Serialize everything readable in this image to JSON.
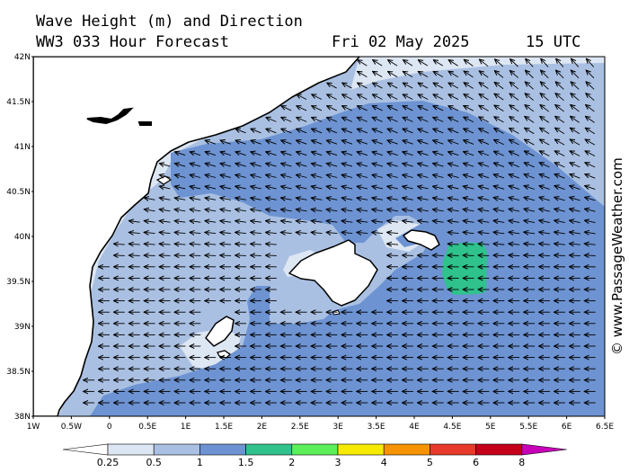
{
  "header": {
    "title_line1": "Wave Height (m) and Direction",
    "title_line2": "WW3 033 Hour Forecast",
    "date": "Fri 02 May 2025",
    "time": "15 UTC"
  },
  "credit": "© www.PassageWeather.com",
  "map": {
    "lat_labels": [
      "42N",
      "41.5N",
      "41N",
      "40.5N",
      "40N",
      "39.5N",
      "39N",
      "38.5N",
      "38N"
    ],
    "lon_labels": [
      "1W",
      "0.5W",
      "0",
      "0.5E",
      "1E",
      "1.5E",
      "2E",
      "2.5E",
      "3E",
      "3.5E",
      "4E",
      "4.5E",
      "5E",
      "5.5E",
      "6E",
      "6.5E"
    ],
    "lat_range": [
      38,
      42
    ],
    "lon_range": [
      -1,
      6.5
    ],
    "wave_direction": "from east-southeast, arrows pointing west / north-west"
  },
  "legend": {
    "labels": [
      "0.25",
      "0.5",
      "1",
      "1.5",
      "2",
      "3",
      "4",
      "5",
      "6",
      "8"
    ],
    "colors": [
      "#ffffff",
      "#dde6f3",
      "#a9c0e2",
      "#6d93d2",
      "#2fc28c",
      "#5cef5a",
      "#f5ea00",
      "#f59300",
      "#e83a2a",
      "#c4001a",
      "#c800b8"
    ]
  },
  "colors": {
    "land": "#ffffff",
    "coast": "#000000",
    "band_025_05": "#dde6f3",
    "band_05_1": "#a9c0e2",
    "band_1_15": "#6d93d2",
    "band_15_2": "#2fc28c"
  }
}
